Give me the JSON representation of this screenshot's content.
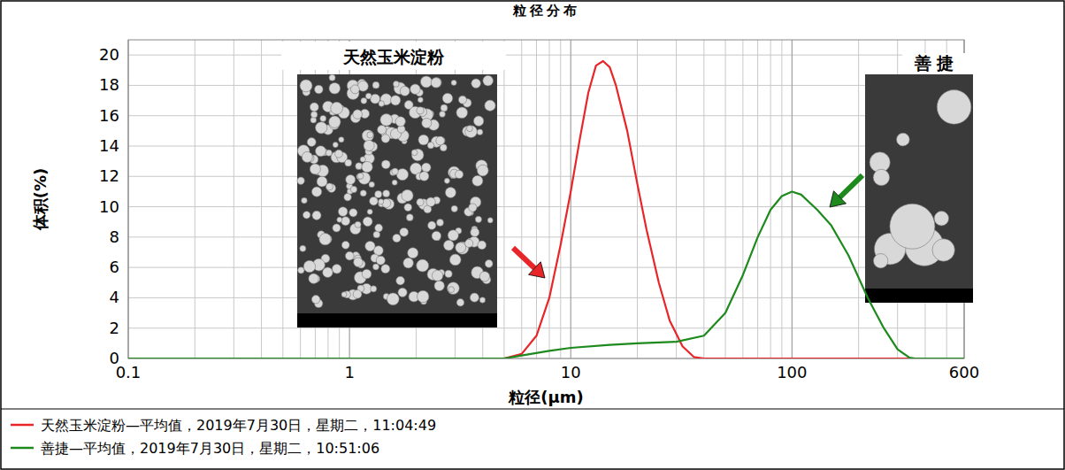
{
  "chart_data": {
    "type": "line",
    "title": "粒径分布",
    "x_label": "粒径(μm)",
    "y_label": "体积(%)",
    "log": "x",
    "grid": true,
    "legend": "bottom",
    "xlim": [
      0.1,
      600
    ],
    "xticks": [
      0.1,
      1,
      10,
      100,
      600
    ],
    "ylim": [
      0,
      21
    ],
    "yticks": [
      0,
      2,
      4,
      6,
      8,
      10,
      12,
      14,
      16,
      18,
      20
    ],
    "annotations": [
      "天然玉米淀粉",
      "善捷"
    ],
    "series": [
      {
        "name": "天然玉米淀粉—平均值，2019年7月30日，星期二，11:04:49",
        "color": "#e8262a",
        "x": [
          0.1,
          5,
          6,
          7,
          8,
          9,
          10,
          11,
          12,
          13,
          14,
          15,
          16,
          18,
          20,
          22,
          25,
          28,
          32,
          36,
          40,
          600
        ],
        "values": [
          0,
          0,
          0.3,
          1.5,
          4,
          7.5,
          11,
          14.5,
          17.5,
          19.3,
          19.6,
          19.2,
          18,
          15,
          11.5,
          8.5,
          5,
          2.5,
          0.8,
          0.1,
          0,
          0
        ]
      },
      {
        "name": "善捷—平均值，2019年7月30日，星期二，10:51:06",
        "color": "#1e8a1e",
        "x": [
          0.1,
          5,
          6,
          8,
          10,
          15,
          20,
          30,
          40,
          50,
          60,
          70,
          80,
          90,
          100,
          110,
          130,
          150,
          180,
          220,
          260,
          300,
          340,
          360,
          600
        ],
        "values": [
          0,
          0,
          0.2,
          0.5,
          0.7,
          0.9,
          1.0,
          1.1,
          1.5,
          3,
          5.5,
          8,
          9.8,
          10.7,
          11,
          10.8,
          9.8,
          8.8,
          6.8,
          4,
          2,
          0.6,
          0.05,
          0,
          0
        ]
      }
    ]
  }
}
